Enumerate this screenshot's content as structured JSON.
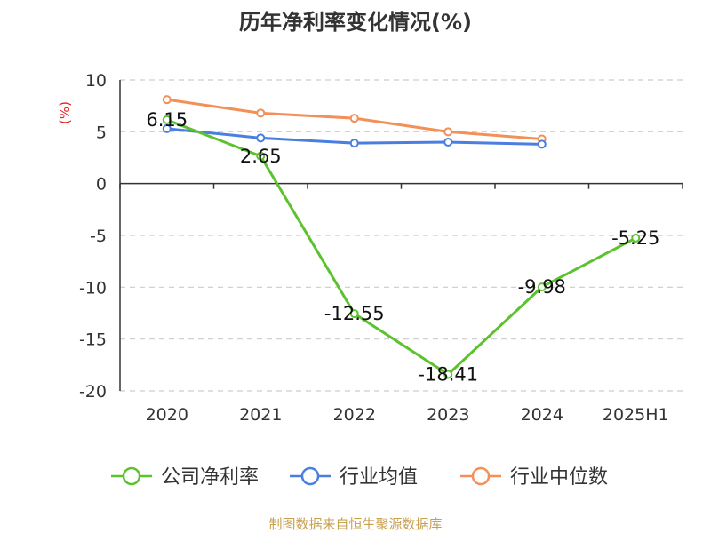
{
  "chart_data": {
    "type": "line",
    "title": "历年净利率变化情况(%)",
    "ylabel": "(%)",
    "xlabel": "",
    "categories": [
      "2020",
      "2021",
      "2022",
      "2023",
      "2024",
      "2025H1"
    ],
    "ylim": [
      -20,
      10
    ],
    "yticks": [
      10,
      5,
      0,
      -5,
      -10,
      -15,
      -20
    ],
    "grid": true,
    "legend_position": "bottom",
    "series": [
      {
        "name": "公司净利率",
        "color": "#5cc22d",
        "values": [
          6.15,
          2.65,
          -12.55,
          -18.41,
          -9.98,
          -5.25
        ],
        "labels": [
          "6.15",
          "2.65",
          "-12.55",
          "-18.41",
          "-9.98",
          "-5.25"
        ]
      },
      {
        "name": "行业均值",
        "color": "#4a7ee0",
        "values": [
          5.3,
          4.4,
          3.9,
          4.0,
          3.8,
          null
        ]
      },
      {
        "name": "行业中位数",
        "color": "#f39058",
        "values": [
          8.1,
          6.8,
          6.3,
          5.0,
          4.3,
          null
        ]
      }
    ],
    "ylabel_color": "#e02020"
  },
  "footer": {
    "source": "制图数据来自恒生聚源数据库",
    "color": "#c8a050"
  }
}
